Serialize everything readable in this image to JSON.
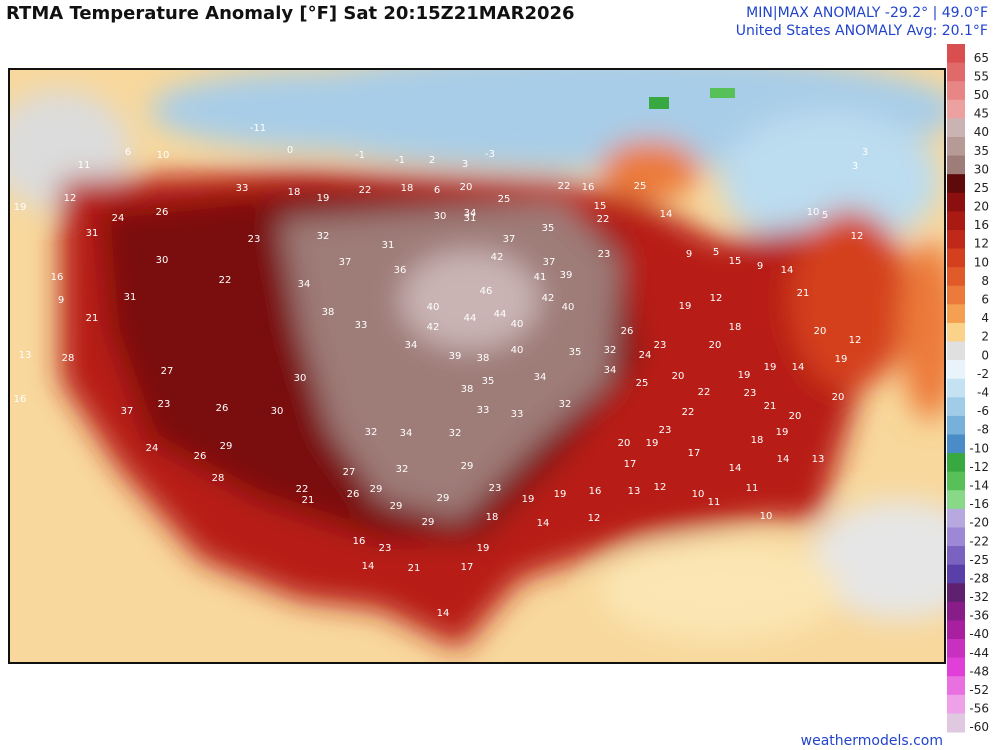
{
  "header": {
    "title": "RTMA Temperature Anomaly [°F]  Sat 20:15Z21MAR2026",
    "minmax": "MIN|MAX ANOMALY -29.2° | 49.0°F",
    "average": "United States ANOMALY Avg: 20.1°F"
  },
  "colorbar": {
    "labels": [
      65,
      55,
      50,
      45,
      40,
      35,
      30,
      25,
      20,
      16,
      12,
      10,
      8,
      6,
      4,
      2,
      0,
      -2,
      -4,
      -6,
      -8,
      -10,
      -12,
      -14,
      -16,
      -20,
      -22,
      -25,
      -28,
      -32,
      -36,
      -40,
      -44,
      -48,
      -52,
      -56,
      -60
    ],
    "colors": [
      "#d94f4f",
      "#e06a6a",
      "#e88585",
      "#eda0a0",
      "#c9b3b3",
      "#b59a96",
      "#9e7c78",
      "#5e0a0a",
      "#8b0f0f",
      "#a81a12",
      "#c0281a",
      "#d4401e",
      "#e05a2a",
      "#ec7a3a",
      "#f4a050",
      "#fad28a",
      "#e0e0e0",
      "#e8f4fa",
      "#c4e2f2",
      "#a0cce8",
      "#78b0dc",
      "#4a8cc8",
      "#38a840",
      "#58c058",
      "#88d888",
      "#b8a8e0",
      "#9c88d4",
      "#7a62c0",
      "#5840a8",
      "#602070",
      "#881c88",
      "#a820a0",
      "#c830c0",
      "#e040d8",
      "#e870e0",
      "#eea0e8",
      "#e0c8e0"
    ]
  },
  "stations": {
    "values": [
      46,
      44,
      44,
      40,
      42,
      40,
      41,
      39,
      42,
      40,
      37,
      42,
      34,
      30,
      31,
      37,
      35,
      36,
      31,
      32,
      37,
      34,
      38,
      33,
      34,
      39,
      38,
      40,
      35,
      32,
      34,
      34,
      35,
      38,
      33,
      33,
      32,
      34,
      32,
      32,
      32,
      27,
      29,
      29,
      29,
      29,
      29,
      23,
      18,
      19,
      17,
      21,
      23,
      14,
      14,
      19,
      14,
      19,
      16,
      12,
      13,
      12,
      17,
      20,
      19,
      17,
      14,
      11,
      11,
      10,
      10,
      18,
      14,
      19,
      13,
      20,
      19,
      12,
      20,
      21,
      14,
      9,
      15,
      12,
      19,
      18,
      20,
      23,
      26,
      24,
      25,
      20,
      22,
      19,
      19,
      14,
      23,
      21,
      20,
      22,
      23,
      23,
      22,
      30,
      31,
      21,
      28,
      27,
      37,
      23,
      24,
      26,
      30,
      30,
      29,
      26,
      28,
      22,
      21,
      26,
      16,
      26,
      24,
      31,
      33,
      18,
      19,
      22,
      18,
      6,
      20,
      25,
      22,
      16,
      15,
      22,
      23,
      25,
      14,
      9,
      5,
      10,
      5,
      12,
      12,
      11,
      6,
      10,
      -11,
      0,
      -1,
      2,
      3,
      -3,
      -1,
      3,
      3,
      19,
      16,
      9,
      13,
      16
    ]
  },
  "footer": "weathermodels.com"
}
